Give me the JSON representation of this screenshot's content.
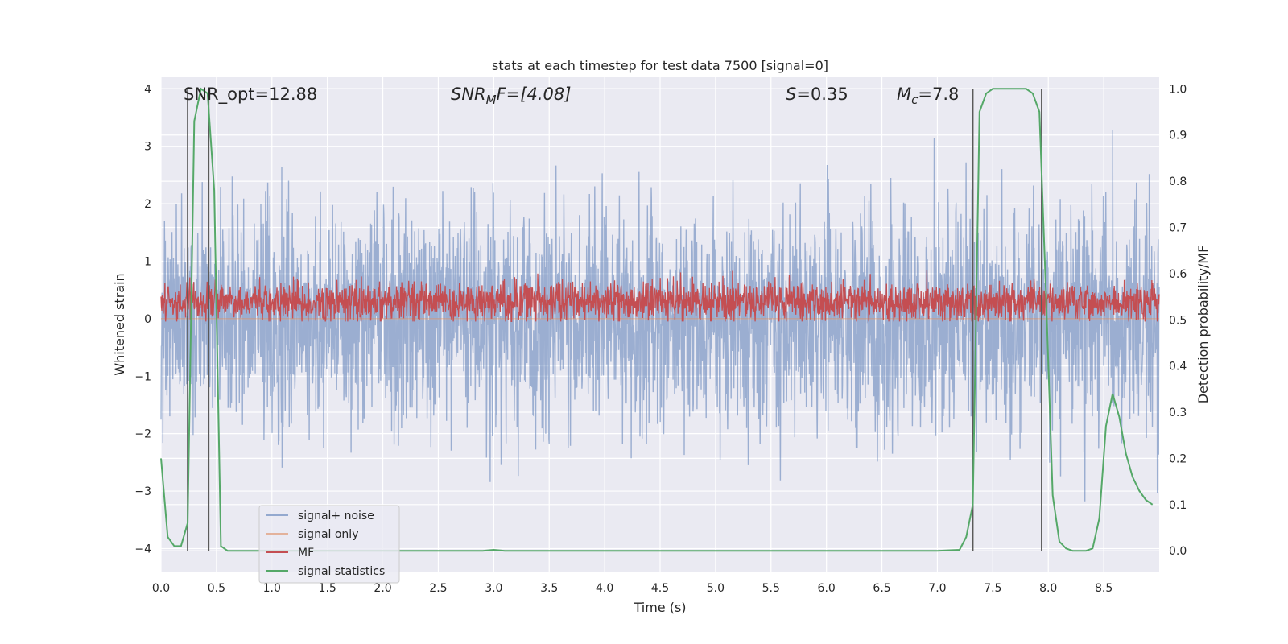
{
  "chart_data": {
    "type": "line",
    "title": "stats at each timestep for test data 7500 [signal=0]",
    "xlabel": "Time (s)",
    "ylabel_left": "Whitened strain",
    "ylabel_right": "Detection probability/MF",
    "xlim": [
      0.0,
      9.0
    ],
    "ylim_left": [
      -4.4,
      4.2
    ],
    "ylim_right": [
      -0.045,
      1.025
    ],
    "x_ticks": [
      "0.0",
      "0.5",
      "1.0",
      "1.5",
      "2.0",
      "2.5",
      "3.0",
      "3.5",
      "4.0",
      "4.5",
      "5.0",
      "5.5",
      "6.0",
      "6.5",
      "7.0",
      "7.5",
      "8.0",
      "8.5"
    ],
    "y_ticks_left": [
      "−4",
      "−3",
      "−2",
      "−1",
      "0",
      "1",
      "2",
      "3",
      "4"
    ],
    "y_ticks_right": [
      "0.0",
      "0.1",
      "0.2",
      "0.3",
      "0.4",
      "0.5",
      "0.6",
      "0.7",
      "0.8",
      "0.9",
      "1.0"
    ],
    "grid": true,
    "legend_position": "lower-left",
    "annotations": {
      "snr_opt": "SNR_opt=12.88",
      "snr_mf": "SNR",
      "snr_mf_sub": "M",
      "snr_mf_rest": "F=[4.08]",
      "s_var": "S",
      "s_val": "=0.35",
      "mc_var": "M",
      "mc_sub": "c",
      "mc_val": "=7.8"
    },
    "vertical_lines_x": [
      0.24,
      0.43,
      7.32,
      7.94
    ],
    "series": [
      {
        "name": "signal+ noise",
        "color": "#4c72b0",
        "axis": "left",
        "kind": "noise",
        "envelope": {
          "mean": 0.0,
          "std": 0.95,
          "min": -4.05,
          "max": 3.85
        }
      },
      {
        "name": "signal only",
        "color": "#dd8452",
        "axis": "left",
        "x": [
          0.0,
          9.0
        ],
        "y": [
          0.0,
          0.0
        ]
      },
      {
        "name": "MF",
        "color": "#c44e52",
        "axis": "left",
        "kind": "noise",
        "envelope": {
          "mean": 0.3,
          "std": 0.17,
          "min": -0.05,
          "max": 1.0
        }
      },
      {
        "name": "signal statistics",
        "color": "#55a868",
        "axis": "right",
        "x": [
          0.0,
          0.06,
          0.12,
          0.18,
          0.24,
          0.3,
          0.36,
          0.42,
          0.48,
          0.54,
          0.6,
          0.66,
          0.72,
          1.0,
          2.0,
          2.9,
          3.0,
          3.1,
          4.0,
          5.0,
          6.0,
          7.0,
          7.2,
          7.26,
          7.32,
          7.38,
          7.44,
          7.5,
          7.6,
          7.8,
          7.86,
          7.92,
          7.98,
          8.04,
          8.1,
          8.16,
          8.22,
          8.28,
          8.34,
          8.4,
          8.46,
          8.52,
          8.58,
          8.64,
          8.7,
          8.76,
          8.82,
          8.88,
          8.94
        ],
        "y": [
          0.2,
          0.03,
          0.01,
          0.01,
          0.06,
          0.93,
          1.0,
          0.99,
          0.78,
          0.01,
          0.0,
          0.0,
          0.0,
          0.0,
          0.0,
          0.0,
          0.002,
          0.0,
          0.0,
          0.0,
          0.0,
          0.0,
          0.002,
          0.03,
          0.1,
          0.95,
          0.99,
          1.0,
          1.0,
          1.0,
          0.99,
          0.95,
          0.55,
          0.12,
          0.02,
          0.005,
          0.0,
          0.0,
          0.0,
          0.005,
          0.07,
          0.27,
          0.34,
          0.29,
          0.21,
          0.16,
          0.13,
          0.11,
          0.1
        ]
      }
    ]
  }
}
